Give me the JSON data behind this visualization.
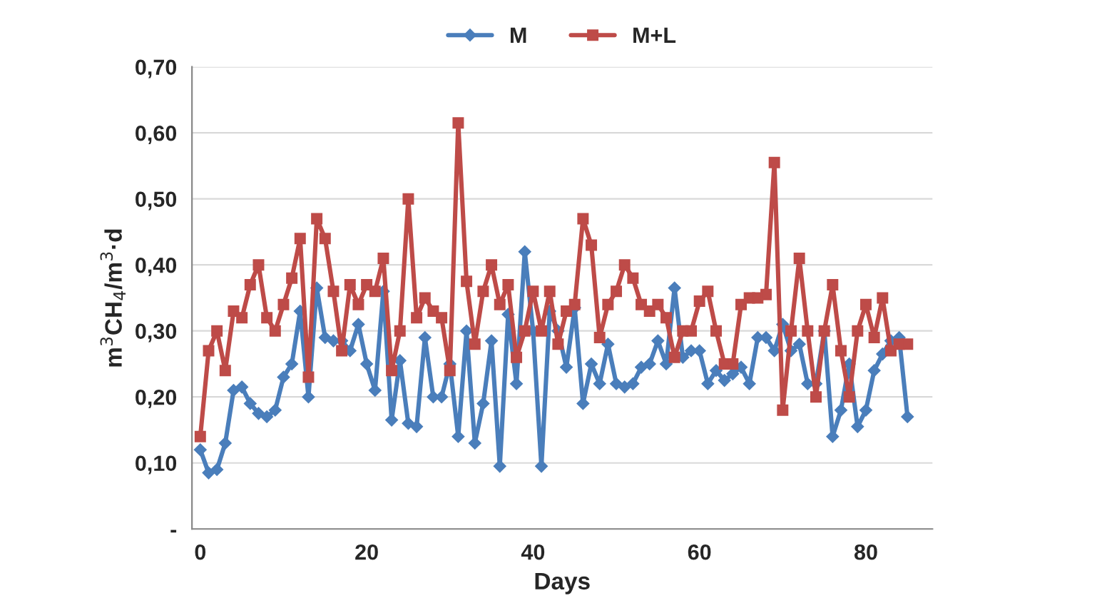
{
  "chart_data": {
    "type": "line",
    "xlabel": "Days",
    "ylabel": "m$^{3}$CH$_{4}$/m$^{3}$·d",
    "x": [
      0,
      1,
      2,
      3,
      4,
      5,
      6,
      7,
      8,
      9,
      10,
      11,
      12,
      13,
      14,
      15,
      16,
      17,
      18,
      19,
      20,
      21,
      22,
      23,
      24,
      25,
      26,
      27,
      28,
      29,
      30,
      31,
      32,
      33,
      34,
      35,
      36,
      37,
      38,
      39,
      40,
      41,
      42,
      43,
      44,
      45,
      46,
      47,
      48,
      49,
      50,
      51,
      52,
      53,
      54,
      55,
      56,
      57,
      58,
      59,
      60,
      61,
      62,
      63,
      64,
      65,
      66,
      67,
      68,
      69,
      70,
      71,
      72,
      73,
      74,
      75,
      76,
      77,
      78,
      79,
      80,
      81,
      82,
      83,
      84,
      85
    ],
    "series": [
      {
        "name": "M",
        "color": "#4a7ebb",
        "marker": "diamond",
        "values": [
          0.12,
          0.085,
          0.09,
          0.13,
          0.21,
          0.215,
          0.19,
          0.175,
          0.17,
          0.18,
          0.23,
          0.25,
          0.33,
          0.2,
          0.365,
          0.29,
          0.285,
          0.285,
          0.27,
          0.31,
          0.25,
          0.21,
          0.36,
          0.165,
          0.255,
          0.16,
          0.155,
          0.29,
          0.2,
          0.2,
          0.25,
          0.14,
          0.3,
          0.13,
          0.19,
          0.285,
          0.095,
          0.325,
          0.22,
          0.42,
          0.3,
          0.095,
          0.33,
          0.3,
          0.245,
          0.335,
          0.19,
          0.25,
          0.22,
          0.28,
          0.22,
          0.215,
          0.22,
          0.245,
          0.25,
          0.285,
          0.25,
          0.365,
          0.26,
          0.27,
          0.27,
          0.22,
          0.24,
          0.225,
          0.235,
          0.245,
          0.22,
          0.29,
          0.29,
          0.27,
          0.31,
          0.27,
          0.28,
          0.22,
          0.22,
          0.3,
          0.14,
          0.18,
          0.25,
          0.155,
          0.18,
          0.24,
          0.265,
          0.285,
          0.29,
          0.17
        ]
      },
      {
        "name": "M+L",
        "color": "#be4b48",
        "marker": "square",
        "values": [
          0.14,
          0.27,
          0.3,
          0.24,
          0.33,
          0.32,
          0.37,
          0.4,
          0.32,
          0.3,
          0.34,
          0.38,
          0.44,
          0.23,
          0.47,
          0.44,
          0.36,
          0.27,
          0.37,
          0.34,
          0.37,
          0.36,
          0.41,
          0.24,
          0.3,
          0.5,
          0.32,
          0.35,
          0.33,
          0.32,
          0.24,
          0.615,
          0.375,
          0.28,
          0.36,
          0.4,
          0.34,
          0.37,
          0.26,
          0.3,
          0.36,
          0.3,
          0.36,
          0.28,
          0.33,
          0.34,
          0.47,
          0.43,
          0.29,
          0.34,
          0.36,
          0.4,
          0.38,
          0.34,
          0.33,
          0.34,
          0.32,
          0.26,
          0.3,
          0.3,
          0.345,
          0.36,
          0.3,
          0.25,
          0.25,
          0.34,
          0.35,
          0.35,
          0.355,
          0.555,
          0.18,
          0.3,
          0.41,
          0.3,
          0.2,
          0.3,
          0.37,
          0.27,
          0.2,
          0.3,
          0.34,
          0.29,
          0.35,
          0.27,
          0.28,
          0.28
        ]
      }
    ],
    "xlim": [
      -1,
      88
    ],
    "xticks": [
      0,
      20,
      40,
      60,
      80
    ],
    "ylim": [
      0,
      0.7
    ],
    "yticks": [
      {
        "value": 0,
        "label": "-"
      },
      {
        "value": 0.1,
        "label": "0,10"
      },
      {
        "value": 0.2,
        "label": "0,20"
      },
      {
        "value": 0.3,
        "label": "0,30"
      },
      {
        "value": 0.4,
        "label": "0,40"
      },
      {
        "value": 0.5,
        "label": "0,50"
      },
      {
        "value": 0.6,
        "label": "0,60"
      },
      {
        "value": 0.7,
        "label": "0,70"
      }
    ],
    "grid": "y",
    "legend": "top",
    "line_style": "solid"
  }
}
